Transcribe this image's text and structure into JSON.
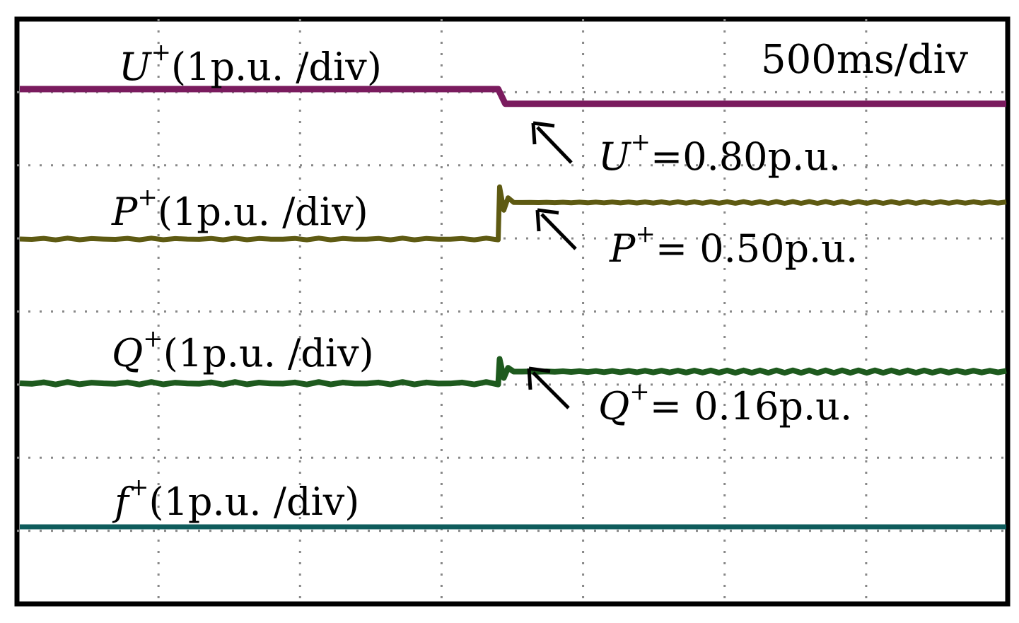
{
  "chart_data": {
    "type": "line",
    "title": "",
    "time_scale": "500ms/div",
    "grid": true,
    "x_divisions": 7,
    "y_divisions": 8,
    "step_time_div": 3.4,
    "series": [
      {
        "name_symbol": "U",
        "name_sup": "+",
        "scale": "(1p.u. /div)",
        "color": "#7a1b5e",
        "values_pu": [
          1.0,
          0.8
        ],
        "annotation": {
          "symbol": "U",
          "sup": "+",
          "text": "=0.80p.u."
        }
      },
      {
        "name_symbol": "P",
        "name_sup": "+",
        "scale": "(1p.u. /div)",
        "color": "#5e5a12",
        "values_pu": [
          0.0,
          0.5
        ],
        "annotation": {
          "symbol": "P",
          "sup": "+",
          "text": "= 0.50p.u."
        }
      },
      {
        "name_symbol": "Q",
        "name_sup": "+",
        "scale": "(1p.u. /div)",
        "color": "#1e5a1e",
        "values_pu": [
          0.0,
          0.16
        ],
        "annotation": {
          "symbol": "Q",
          "sup": "+",
          "text": "= 0.16p.u."
        }
      },
      {
        "name_symbol": "f",
        "name_sup": "+",
        "scale": "(1p.u. /div)",
        "color": "#0f5c5c",
        "values_pu": [
          1.0,
          1.0
        ]
      }
    ]
  }
}
